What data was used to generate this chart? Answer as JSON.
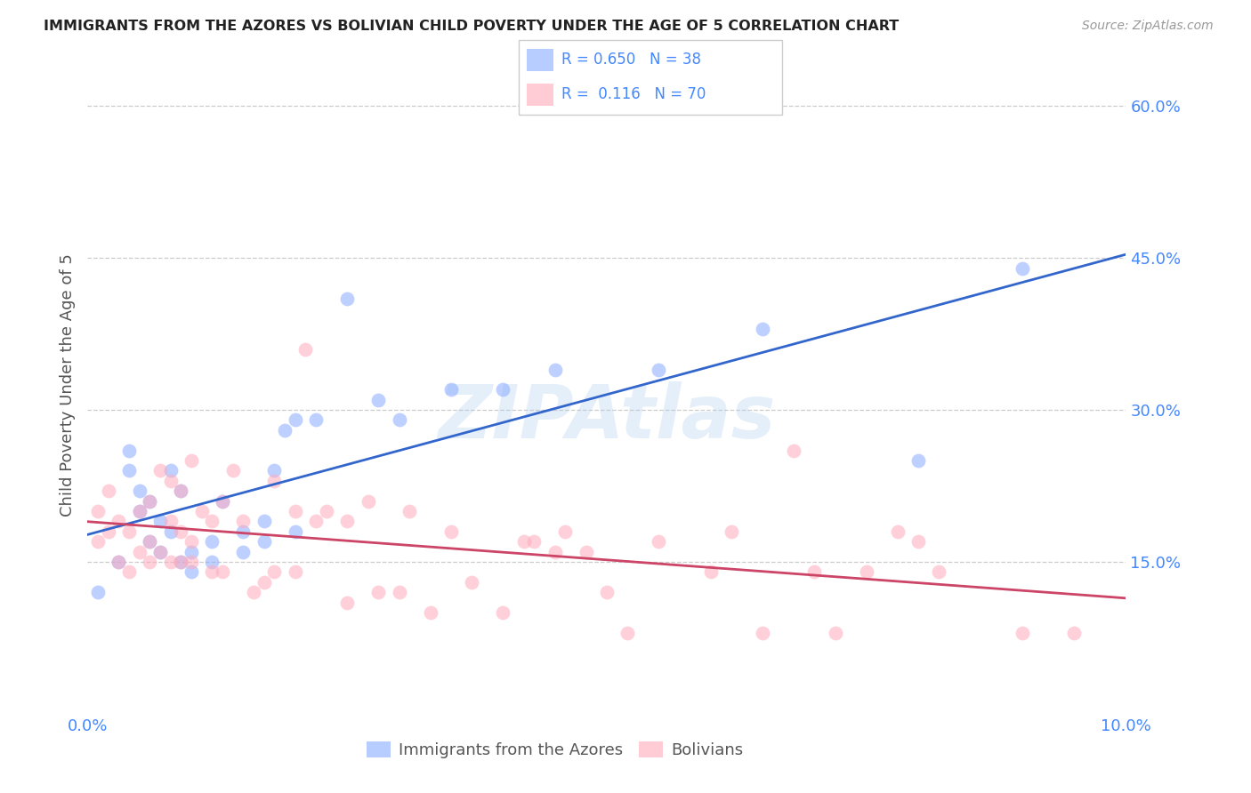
{
  "title": "IMMIGRANTS FROM THE AZORES VS BOLIVIAN CHILD POVERTY UNDER THE AGE OF 5 CORRELATION CHART",
  "source": "Source: ZipAtlas.com",
  "ylabel": "Child Poverty Under the Age of 5",
  "xlim": [
    0.0,
    0.1
  ],
  "ylim": [
    0.0,
    0.65
  ],
  "yticks": [
    0.15,
    0.3,
    0.45,
    0.6
  ],
  "ytick_labels": [
    "15.0%",
    "30.0%",
    "45.0%",
    "60.0%"
  ],
  "xtick_positions": [
    0.0,
    0.02,
    0.04,
    0.06,
    0.08,
    0.1
  ],
  "xtick_labels": [
    "0.0%",
    "",
    "",
    "",
    "",
    "10.0%"
  ],
  "grid_color": "#cccccc",
  "background_color": "#ffffff",
  "blue_color": "#88aaff",
  "blue_line_color": "#3366cc",
  "pink_color": "#ffaabb",
  "pink_line_color": "#cc4466",
  "blue_label": "Immigrants from the Azores",
  "pink_label": "Bolivians",
  "blue_R": 0.65,
  "blue_N": 38,
  "pink_R": 0.116,
  "pink_N": 70,
  "title_color": "#222222",
  "axis_label_color": "#555555",
  "tick_color": "#4488ff",
  "watermark": "ZIPAtlas",
  "watermark_color": "#aaccee",
  "blue_x": [
    0.001,
    0.003,
    0.004,
    0.004,
    0.005,
    0.005,
    0.006,
    0.006,
    0.007,
    0.007,
    0.008,
    0.008,
    0.009,
    0.009,
    0.01,
    0.01,
    0.012,
    0.012,
    0.013,
    0.015,
    0.015,
    0.017,
    0.017,
    0.018,
    0.019,
    0.02,
    0.02,
    0.022,
    0.025,
    0.028,
    0.03,
    0.035,
    0.04,
    0.045,
    0.055,
    0.065,
    0.08,
    0.09
  ],
  "blue_y": [
    0.12,
    0.15,
    0.24,
    0.26,
    0.2,
    0.22,
    0.17,
    0.21,
    0.16,
    0.19,
    0.18,
    0.24,
    0.15,
    0.22,
    0.14,
    0.16,
    0.17,
    0.15,
    0.21,
    0.18,
    0.16,
    0.19,
    0.17,
    0.24,
    0.28,
    0.18,
    0.29,
    0.29,
    0.41,
    0.31,
    0.29,
    0.32,
    0.32,
    0.34,
    0.34,
    0.38,
    0.25,
    0.44
  ],
  "pink_x": [
    0.001,
    0.001,
    0.002,
    0.002,
    0.003,
    0.003,
    0.004,
    0.004,
    0.005,
    0.005,
    0.006,
    0.006,
    0.006,
    0.007,
    0.007,
    0.008,
    0.008,
    0.008,
    0.009,
    0.009,
    0.009,
    0.01,
    0.01,
    0.01,
    0.011,
    0.012,
    0.012,
    0.013,
    0.013,
    0.014,
    0.015,
    0.016,
    0.017,
    0.018,
    0.018,
    0.02,
    0.02,
    0.021,
    0.022,
    0.023,
    0.025,
    0.025,
    0.027,
    0.028,
    0.03,
    0.031,
    0.033,
    0.035,
    0.037,
    0.04,
    0.042,
    0.043,
    0.045,
    0.046,
    0.048,
    0.05,
    0.052,
    0.055,
    0.06,
    0.062,
    0.065,
    0.068,
    0.07,
    0.072,
    0.075,
    0.078,
    0.08,
    0.082,
    0.09,
    0.095
  ],
  "pink_y": [
    0.17,
    0.2,
    0.18,
    0.22,
    0.15,
    0.19,
    0.14,
    0.18,
    0.16,
    0.2,
    0.15,
    0.17,
    0.21,
    0.16,
    0.24,
    0.15,
    0.19,
    0.23,
    0.15,
    0.18,
    0.22,
    0.15,
    0.17,
    0.25,
    0.2,
    0.14,
    0.19,
    0.14,
    0.21,
    0.24,
    0.19,
    0.12,
    0.13,
    0.23,
    0.14,
    0.2,
    0.14,
    0.36,
    0.19,
    0.2,
    0.11,
    0.19,
    0.21,
    0.12,
    0.12,
    0.2,
    0.1,
    0.18,
    0.13,
    0.1,
    0.17,
    0.17,
    0.16,
    0.18,
    0.16,
    0.12,
    0.08,
    0.17,
    0.14,
    0.18,
    0.08,
    0.26,
    0.14,
    0.08,
    0.14,
    0.18,
    0.17,
    0.14,
    0.08,
    0.08
  ]
}
